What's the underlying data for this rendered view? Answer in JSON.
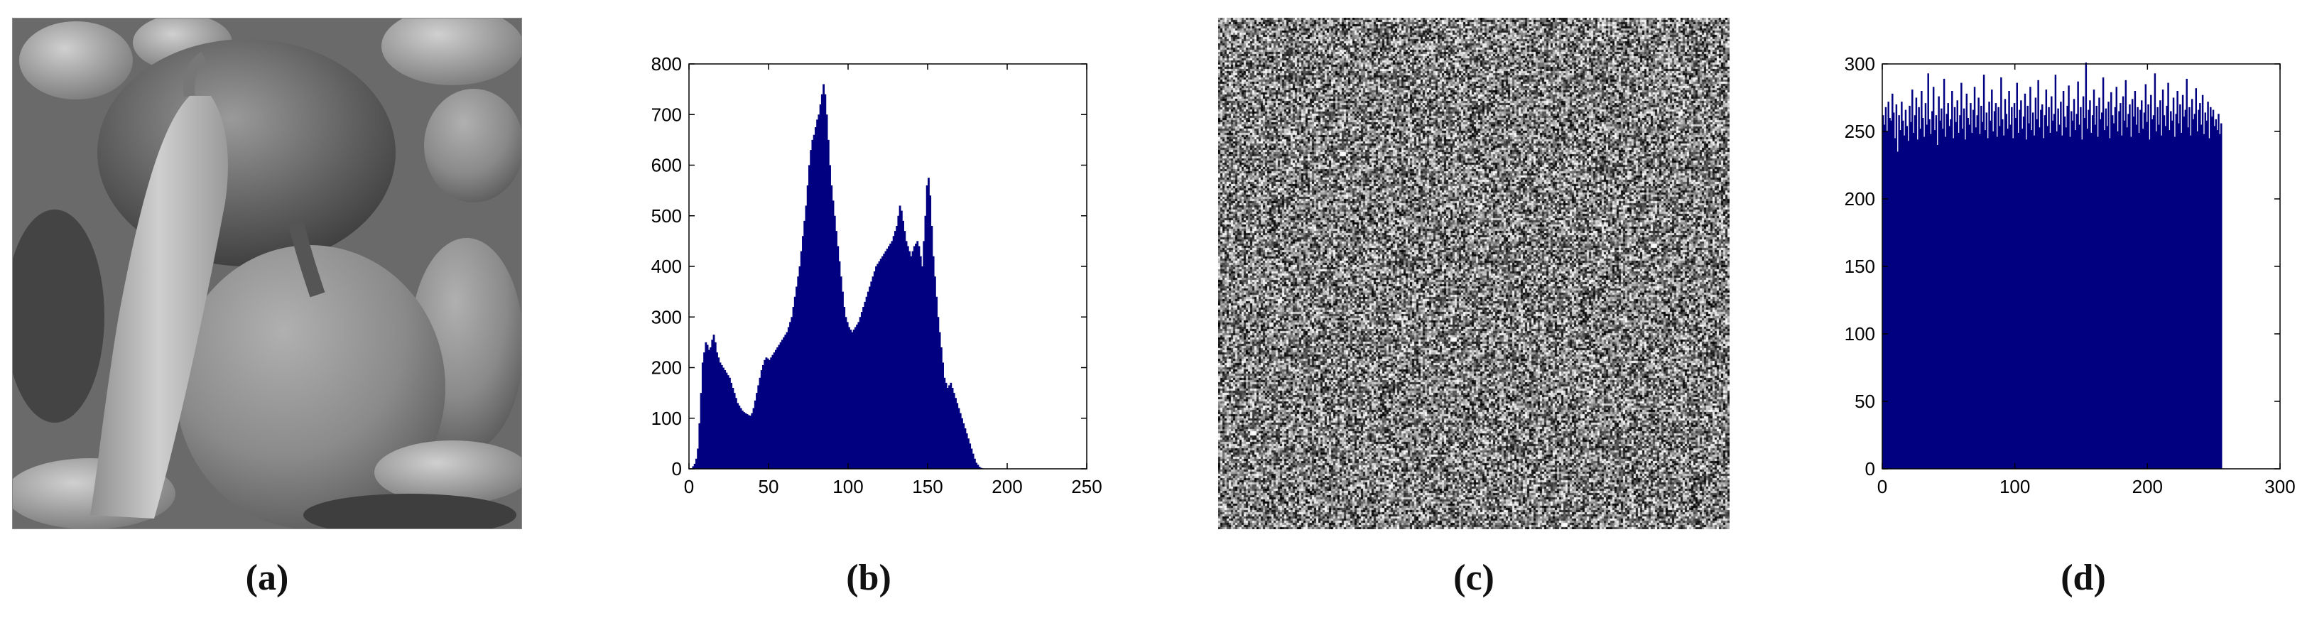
{
  "captions": {
    "a": "(a)",
    "b": "(b)",
    "c": "(c)",
    "d": "(d)"
  },
  "colors": {
    "bar": "#000080",
    "axis": "#000000",
    "noise_dark": "#1a1a1a",
    "noise_light": "#e6e6e6"
  },
  "image_a": {
    "content": "grayscale photograph of peppers"
  },
  "image_c": {
    "content": "encrypted noise-like grayscale image"
  },
  "chart_data": [
    {
      "id": "b",
      "type": "bar",
      "xlim": [
        0,
        250
      ],
      "ylim": [
        0,
        800
      ],
      "xticks": [
        0,
        50,
        100,
        150,
        200,
        250
      ],
      "yticks": [
        0,
        100,
        200,
        300,
        400,
        500,
        600,
        700,
        800
      ],
      "x_start": 0,
      "values": [
        0,
        0,
        5,
        10,
        20,
        40,
        90,
        150,
        210,
        230,
        250,
        245,
        235,
        240,
        255,
        265,
        250,
        230,
        220,
        210,
        205,
        200,
        195,
        190,
        185,
        180,
        170,
        160,
        150,
        140,
        130,
        125,
        120,
        115,
        112,
        110,
        108,
        106,
        105,
        110,
        120,
        135,
        150,
        165,
        180,
        195,
        205,
        215,
        220,
        218,
        215,
        220,
        225,
        230,
        235,
        240,
        245,
        250,
        255,
        260,
        265,
        270,
        280,
        290,
        300,
        320,
        340,
        360,
        380,
        400,
        430,
        460,
        490,
        520,
        560,
        600,
        630,
        650,
        660,
        675,
        690,
        700,
        720,
        740,
        760,
        740,
        700,
        650,
        600,
        560,
        530,
        500,
        470,
        440,
        410,
        380,
        350,
        320,
        300,
        290,
        280,
        275,
        270,
        275,
        280,
        285,
        290,
        300,
        310,
        320,
        330,
        340,
        350,
        360,
        370,
        380,
        390,
        400,
        405,
        410,
        415,
        420,
        425,
        430,
        435,
        440,
        445,
        450,
        460,
        470,
        480,
        500,
        520,
        510,
        490,
        470,
        450,
        440,
        430,
        420,
        430,
        440,
        445,
        450,
        440,
        420,
        400,
        450,
        500,
        560,
        575,
        540,
        480,
        420,
        380,
        340,
        300,
        270,
        240,
        210,
        180,
        170,
        160,
        165,
        170,
        160,
        150,
        140,
        130,
        120,
        110,
        100,
        90,
        80,
        70,
        60,
        50,
        40,
        30,
        20,
        12,
        8,
        4,
        2,
        1,
        0,
        0,
        0,
        0,
        0,
        0,
        0,
        0,
        0,
        0,
        0,
        0,
        0,
        0,
        0,
        0,
        0,
        0,
        0,
        0,
        0,
        0,
        0,
        0,
        0,
        0,
        0,
        0,
        0,
        0,
        0,
        0,
        0,
        0,
        0,
        0,
        0,
        0,
        0,
        0,
        0,
        0,
        0,
        0,
        0,
        0,
        0,
        0,
        0,
        0,
        0,
        0,
        0,
        0,
        0,
        0,
        0,
        0,
        0,
        0,
        0,
        0,
        0,
        0,
        0,
        0,
        0,
        0,
        0,
        0,
        0,
        0,
        0,
        0,
        0,
        0,
        0,
        0,
        0,
        0
      ]
    },
    {
      "id": "d",
      "type": "bar",
      "xlim": [
        0,
        300
      ],
      "ylim": [
        0,
        300
      ],
      "xticks": [
        0,
        100,
        200,
        300
      ],
      "yticks": [
        0,
        50,
        100,
        150,
        200,
        250,
        300
      ],
      "x_start": 0,
      "values": [
        262,
        255,
        268,
        250,
        272,
        260,
        258,
        278,
        264,
        245,
        270,
        235,
        262,
        251,
        272,
        258,
        247,
        266,
        254,
        243,
        269,
        257,
        281,
        249,
        262,
        275,
        244,
        268,
        252,
        280,
        260,
        246,
        271,
        255,
        293,
        259,
        248,
        265,
        283,
        251,
        262,
        240,
        276,
        258,
        267,
        252,
        289,
        246,
        263,
        271,
        254,
        259,
        280,
        245,
        268,
        257,
        273,
        249,
        262,
        286,
        252,
        267,
        244,
        278,
        260,
        255,
        271,
        249,
        266,
        283,
        253,
        262,
        275,
        248,
        269,
        257,
        292,
        251,
        264,
        245,
        272,
        258,
        281,
        250,
        265,
        271,
        246,
        268,
        254,
        290,
        259,
        247,
        274,
        263,
        252,
        280,
        255,
        268,
        245,
        271,
        260,
        286,
        249,
        266,
        273,
        252,
        261,
        278,
        244,
        269,
        256,
        283,
        251,
        264,
        247,
        275,
        259,
        288,
        253,
        266,
        270,
        245,
        262,
        281,
        254,
        268,
        249,
        276,
        258,
        263,
        292,
        250,
        267,
        255,
        272,
        247,
        280,
        261,
        253,
        269,
        284,
        246,
        265,
        258,
        274,
        251,
        263,
        287,
        255,
        268,
        244,
        276,
        260,
        301,
        252,
        266,
        273,
        249,
        262,
        281,
        255,
        269,
        246,
        275,
        259,
        264,
        290,
        251,
        267,
        254,
        272,
        245,
        279,
        262,
        256,
        268,
        283,
        250,
        265,
        271,
        247,
        276,
        258,
        288,
        253,
        263,
        270,
        246,
        274,
        261,
        280,
        255,
        268,
        249,
        266,
        273,
        252,
        264,
        285,
        257,
        270,
        244,
        277,
        259,
        262,
        293,
        250,
        268,
        255,
        273,
        247,
        281,
        262,
        254,
        269,
        286,
        251,
        265,
        258,
        275,
        246,
        263,
        280,
        256,
        270,
        249,
        277,
        261,
        266,
        289,
        253,
        268,
        247,
        274,
        259,
        263,
        282,
        250,
        266,
        271,
        255,
        277,
        248,
        264,
        258,
        272,
        245,
        268,
        261,
        266,
        254,
        259,
        251,
        263,
        248,
        256
      ]
    }
  ]
}
